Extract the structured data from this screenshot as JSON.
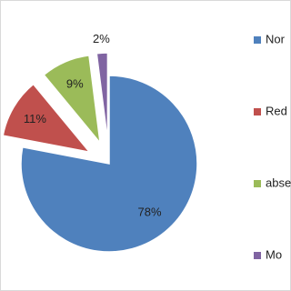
{
  "chart_data": {
    "type": "pie",
    "categories": [
      "Nor",
      "Red",
      "abse",
      "Mo"
    ],
    "values": [
      78,
      11,
      9,
      2
    ],
    "value_labels": [
      "78%",
      "11%",
      "9%",
      "2%"
    ],
    "colors": [
      "#4f81bd",
      "#c0504d",
      "#9bbb59",
      "#8064a2"
    ],
    "legend": "right"
  }
}
